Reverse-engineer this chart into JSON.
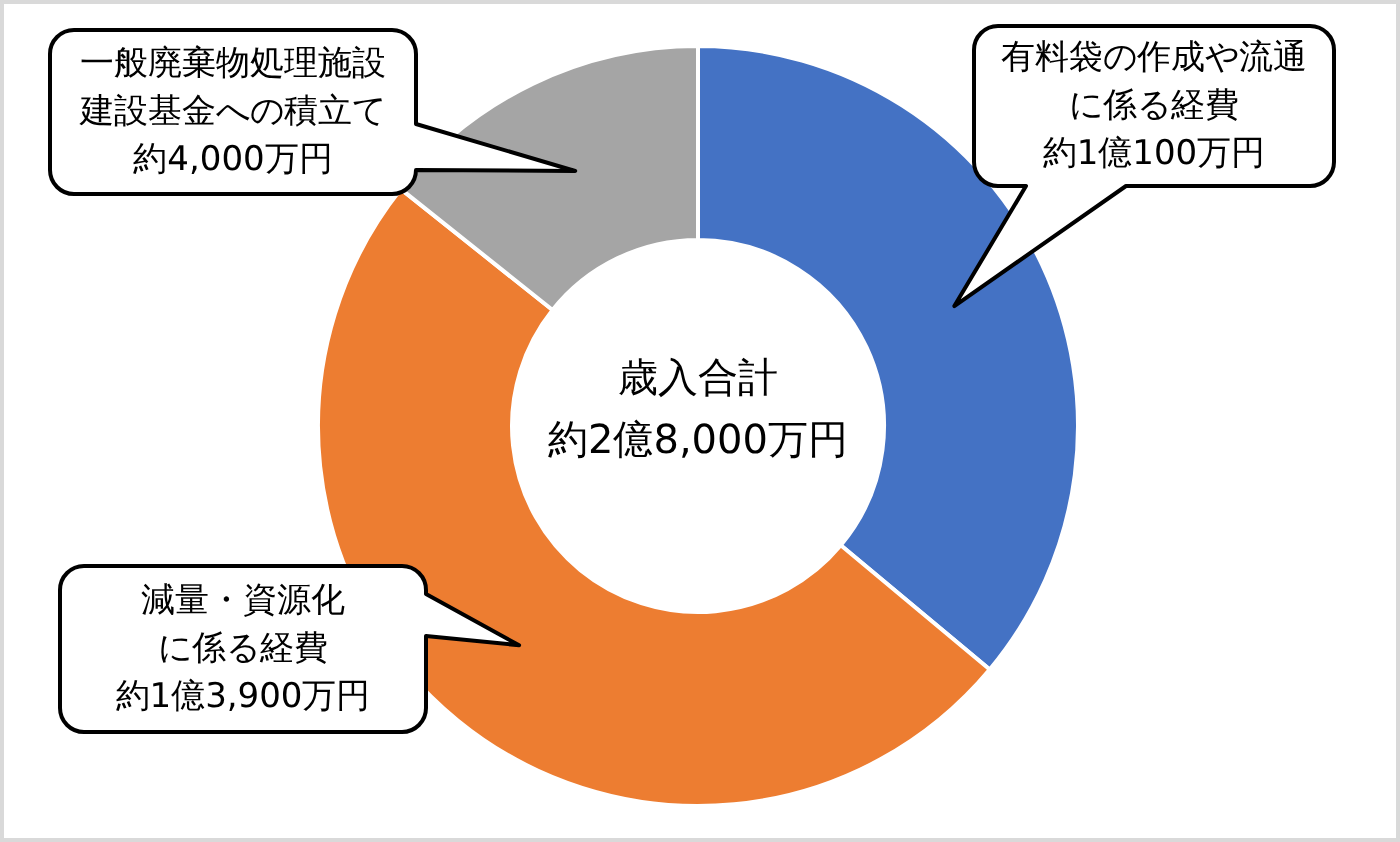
{
  "chart_data": {
    "type": "donut",
    "categories": [
      "有料袋の作成や流通に係る経費",
      "減量・資源化に係る経費",
      "一般廃棄物処理施設建設基金への積立て"
    ],
    "values": [
      10100,
      13900,
      4000
    ],
    "colors": [
      "#4472c4",
      "#ed7d31",
      "#a5a5a5"
    ],
    "value_labels": [
      "約1億100万円",
      "約1億3,900万円",
      "約4,000万円"
    ],
    "annotations": [
      "歳入合計",
      "約2億8,000万円"
    ]
  }
}
